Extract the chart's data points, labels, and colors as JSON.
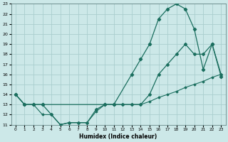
{
  "xlabel": "Humidex (Indice chaleur)",
  "xlim": [
    -0.5,
    23.5
  ],
  "ylim": [
    11,
    23
  ],
  "yticks": [
    11,
    12,
    13,
    14,
    15,
    16,
    17,
    18,
    19,
    20,
    21,
    22,
    23
  ],
  "xticks": [
    0,
    1,
    2,
    3,
    4,
    5,
    6,
    7,
    8,
    9,
    10,
    11,
    12,
    13,
    14,
    15,
    16,
    17,
    18,
    19,
    20,
    21,
    22,
    23
  ],
  "bg_color": "#cce8e8",
  "grid_color": "#aacece",
  "line_color": "#1a6e5e",
  "line1_x": [
    0,
    1,
    2,
    3,
    10,
    11,
    13,
    14,
    15,
    16,
    17,
    18,
    19,
    20,
    21,
    22,
    23
  ],
  "line1_y": [
    14,
    13,
    13,
    13,
    13,
    13,
    16,
    17.5,
    19,
    21.5,
    22.5,
    23,
    22.5,
    20.5,
    16.5,
    19,
    15.8
  ],
  "line2_x": [
    0,
    1,
    2,
    3,
    4,
    5,
    6,
    7,
    8,
    9,
    10,
    11,
    12,
    13,
    14,
    15,
    16,
    17,
    18,
    19,
    20,
    21,
    22,
    23
  ],
  "line2_y": [
    14,
    13,
    13,
    12,
    12,
    11,
    11.2,
    11.2,
    11.2,
    12.3,
    13,
    13,
    13,
    13,
    13,
    13.3,
    13.7,
    14,
    14.3,
    14.7,
    15,
    15.3,
    15.7,
    16
  ],
  "line3_x": [
    0,
    1,
    2,
    3,
    4,
    5,
    6,
    7,
    8,
    9,
    10,
    11,
    12,
    13,
    14,
    15,
    16,
    17,
    18,
    19,
    20,
    21,
    22,
    23
  ],
  "line3_y": [
    14,
    13,
    13,
    13,
    12,
    11,
    11.2,
    11.2,
    11.2,
    12.5,
    13,
    13,
    13,
    13,
    13,
    14,
    16,
    17,
    18,
    19,
    18,
    18,
    19,
    16
  ]
}
